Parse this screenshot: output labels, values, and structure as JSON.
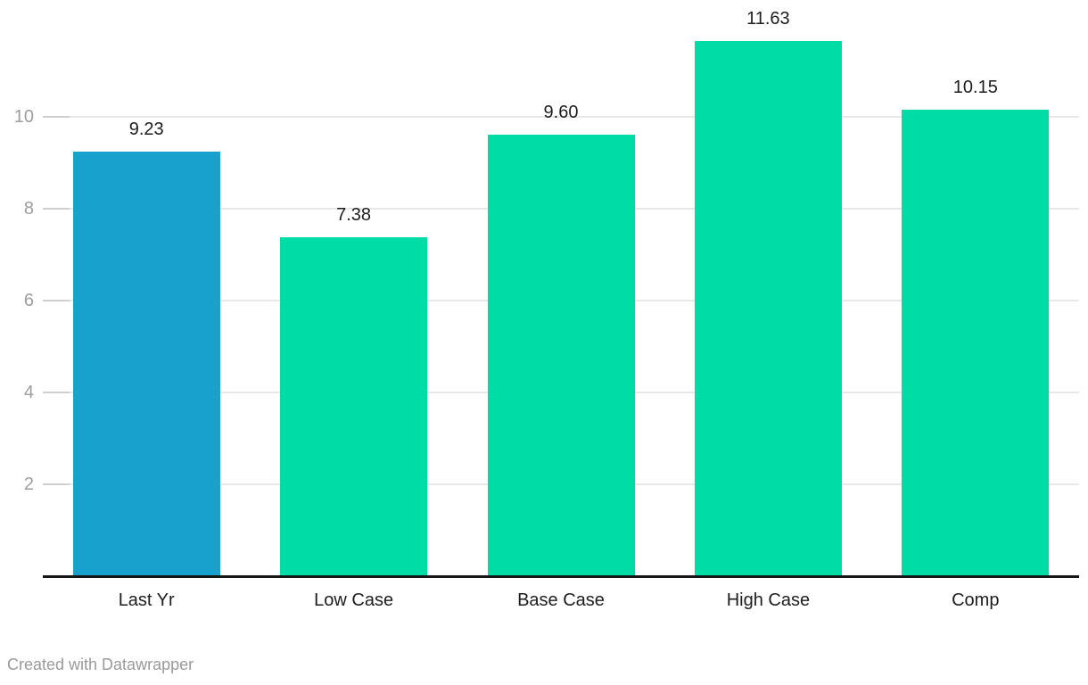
{
  "chart_data": {
    "type": "bar",
    "categories": [
      "Last Yr",
      "Low Case",
      "Base Case",
      "High Case",
      "Comp"
    ],
    "values": [
      9.23,
      7.38,
      9.6,
      11.63,
      10.15
    ],
    "value_labels": [
      "9.23",
      "7.38",
      "9.60",
      "11.63",
      "10.15"
    ],
    "bar_colors": [
      "#18a1cd",
      "#00dca6",
      "#00dca6",
      "#00dca6",
      "#00dca6"
    ],
    "y_ticks": [
      2,
      4,
      6,
      8,
      10
    ],
    "y_tick_labels": [
      "2",
      "4",
      "6",
      "8",
      "10"
    ],
    "ylim": [
      0,
      12.1
    ],
    "grid": "horizontal",
    "legend": "none",
    "title": "",
    "xlabel": "",
    "ylabel": ""
  },
  "footer": {
    "credit": "Created with Datawrapper"
  },
  "colors": {
    "bar_blue": "#18a1cd",
    "bar_green": "#00dca6",
    "gridline": "#e8e8e8",
    "tick": "#cfcfcf",
    "axis_label_text": "#9d9d9d",
    "data_label_text": "#1d1d1d",
    "baseline": "#161616",
    "credit_text": "#9a9a9a",
    "background": "#ffffff"
  }
}
